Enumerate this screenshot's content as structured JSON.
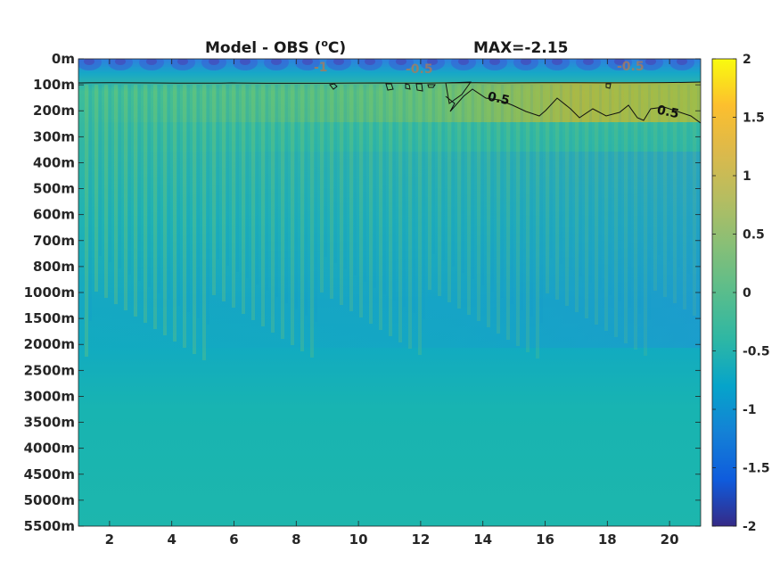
{
  "chart_data": {
    "type": "heatmap",
    "title_left": "Model - OBS (",
    "title_unit": "C)",
    "title_degree": "o",
    "title_right": "MAX=-2.15",
    "x_ticks": [
      "2",
      "4",
      "6",
      "8",
      "10",
      "12",
      "14",
      "16",
      "18",
      "20"
    ],
    "x_tick_values": [
      2,
      4,
      6,
      8,
      10,
      12,
      14,
      16,
      18,
      20
    ],
    "xlim": [
      1,
      21
    ],
    "y_ticks": [
      "0m",
      "100m",
      "200m",
      "300m",
      "400m",
      "500m",
      "600m",
      "700m",
      "800m",
      "1000m",
      "1500m",
      "2000m",
      "2500m",
      "3000m",
      "3500m",
      "4000m",
      "4500m",
      "5000m",
      "5500m"
    ],
    "colorbar": {
      "ticks": [
        "2",
        "1.5",
        "1",
        "0.5",
        "0",
        "-0.5",
        "-1",
        "-1.5",
        "-2"
      ],
      "tick_values": [
        2,
        1.5,
        1,
        0.5,
        0,
        -0.5,
        -1,
        -1.5,
        -2
      ],
      "range": [
        -2,
        2
      ],
      "colormap": "parula"
    },
    "contour_labels": [
      {
        "text": "0.5",
        "x": 14.6,
        "depth_level": 1.5
      },
      {
        "text": "0.5",
        "x": 19.9,
        "depth_level": 2.1
      },
      {
        "text": "-0.5",
        "x": 11.9,
        "depth_level": 0.35
      },
      {
        "text": "-0.5",
        "x": 18.8,
        "depth_level": 0.3
      },
      {
        "text": "-1",
        "x": 8.8,
        "depth_level": 0.25
      }
    ],
    "grid": false,
    "legend": "colorbar-right"
  }
}
